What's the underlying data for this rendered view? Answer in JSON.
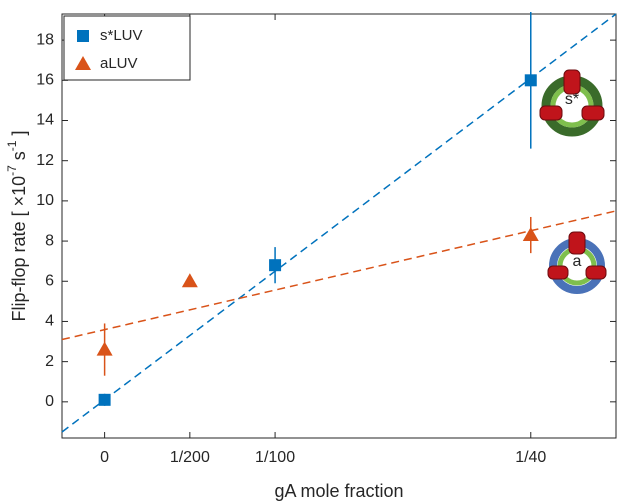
{
  "chart_data": {
    "type": "scatter",
    "x_label": "gA mole fraction",
    "y_label": {
      "text": "Flip-flop rate [ ×10",
      "exp1": "-7",
      "unit": " s",
      "exp2": "-1",
      "close": " ]"
    },
    "xlim": [
      -0.0025,
      0.03
    ],
    "ylim": [
      -1.8,
      19.3
    ],
    "xticks": [
      0,
      {
        "value": 0.005,
        "label": "1/200"
      },
      {
        "value": 0.01,
        "label": "1/100"
      },
      {
        "value": 0.025,
        "label": "1/40"
      }
    ],
    "yticks": [
      0,
      2,
      4,
      6,
      8,
      10,
      12,
      14,
      16,
      18
    ],
    "legend": "upper left",
    "series": [
      {
        "name": "s*LUV",
        "color": "#0072bd",
        "marker": "square",
        "x": [
          0,
          0.01,
          0.025
        ],
        "values": [
          0.1,
          6.8,
          16
        ],
        "errors": [
          0.3,
          0.9,
          3.4
        ]
      },
      {
        "name": "aLUV",
        "color": "#d95319",
        "marker": "triangle",
        "x": [
          0,
          0.005,
          0.025
        ],
        "values": [
          2.6,
          6.0,
          8.3
        ],
        "errors": [
          1.3,
          0.2,
          0.9
        ]
      }
    ],
    "fits": [
      {
        "color": "#0072bd",
        "x": [
          -0.0025,
          0.03
        ],
        "values": [
          -1.5,
          19.3
        ]
      },
      {
        "color": "#d95319",
        "x": [
          -0.0025,
          0.03
        ],
        "values": [
          3.1,
          9.5
        ]
      }
    ],
    "annotations": [
      "s*",
      "a"
    ]
  }
}
